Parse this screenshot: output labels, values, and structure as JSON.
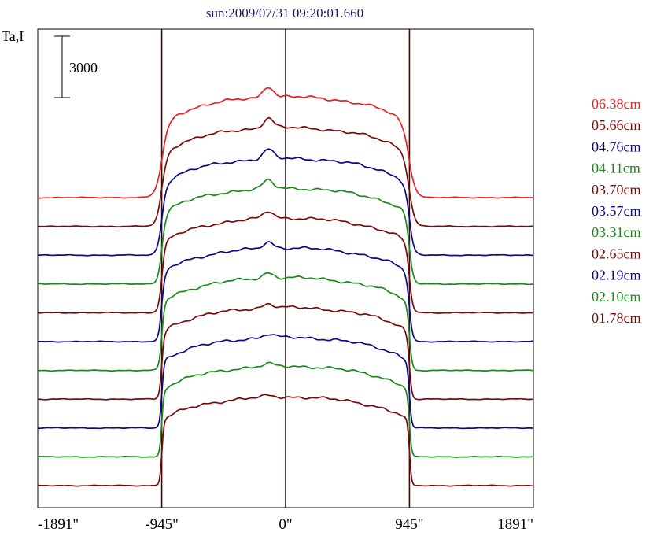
{
  "chart_data": {
    "type": "line",
    "title": "sun:2009/07/31 09:20:01.660",
    "ylabel": "Ta,I",
    "scale_bar_label": "3000",
    "x_ticks": [
      "-1891\"",
      "-945\"",
      "0\"",
      "945\"",
      "1891\""
    ],
    "x_tick_values": [
      -1891,
      -945,
      0,
      945,
      1891
    ],
    "xlim": [
      -1891,
      1891
    ],
    "vertical_lines_at": [
      -945,
      0,
      945
    ],
    "grid": false,
    "legend_position": "right",
    "series": [
      {
        "name": "06.38cm",
        "color": "#e82020",
        "baseline": 0,
        "plateau_height": 5000,
        "limb_width": 115
      },
      {
        "name": "05.66cm",
        "color": "#7a0a0a",
        "baseline": 1,
        "plateau_height": 4900,
        "limb_width": 95
      },
      {
        "name": "04.76cm",
        "color": "#0a0a8a",
        "baseline": 2,
        "plateau_height": 4800,
        "limb_width": 80
      },
      {
        "name": "04.11cm",
        "color": "#1a8a1a",
        "baseline": 3,
        "plateau_height": 4750,
        "limb_width": 70
      },
      {
        "name": "03.70cm",
        "color": "#7a0a0a",
        "baseline": 4,
        "plateau_height": 4700,
        "limb_width": 62
      },
      {
        "name": "03.57cm",
        "color": "#0a0a8a",
        "baseline": 5,
        "plateau_height": 4650,
        "limb_width": 56
      },
      {
        "name": "03.31cm",
        "color": "#1a8a1a",
        "baseline": 6,
        "plateau_height": 4600,
        "limb_width": 50
      },
      {
        "name": "02.65cm",
        "color": "#7a0a0a",
        "baseline": 7,
        "plateau_height": 4550,
        "limb_width": 44
      },
      {
        "name": "02.19cm",
        "color": "#0a0a8a",
        "baseline": 8,
        "plateau_height": 4500,
        "limb_width": 40
      },
      {
        "name": "02.10cm",
        "color": "#1a8a1a",
        "baseline": 9,
        "plateau_height": 4500,
        "limb_width": 38
      },
      {
        "name": "01.78cm",
        "color": "#7a0a0a",
        "baseline": 10,
        "plateau_height": 4400,
        "limb_width": 36
      }
    ]
  }
}
